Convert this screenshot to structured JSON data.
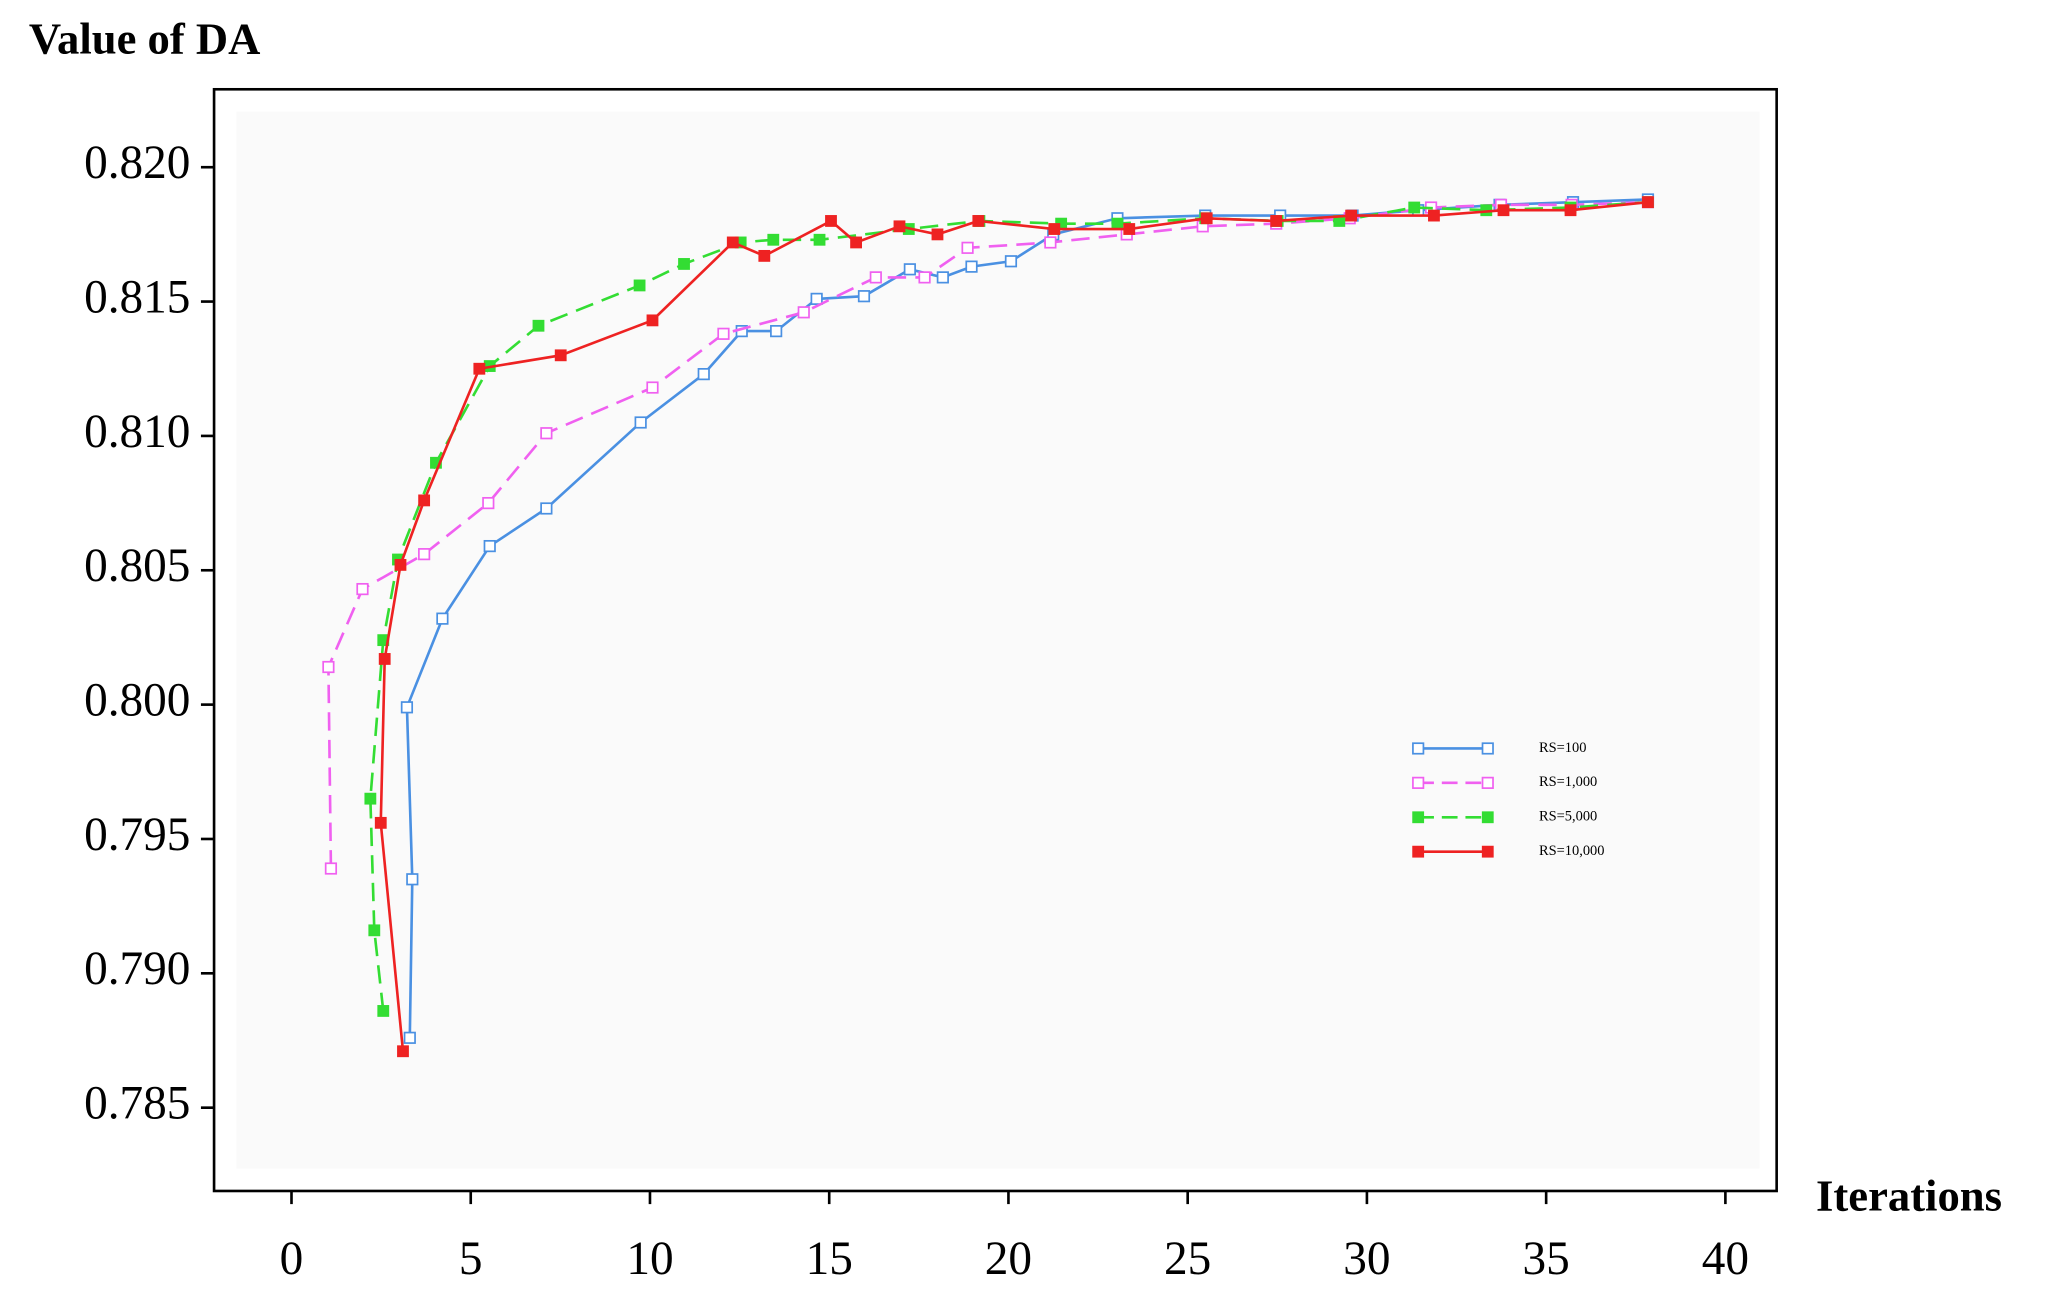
{
  "chart_data": {
    "type": "line",
    "ylabel": "Value of DA",
    "xlabel": "Iterations",
    "xlim": [
      -2.16,
      41.43
    ],
    "ylim": [
      0.7819,
      0.8229
    ],
    "xticks": [
      0,
      5,
      10,
      15,
      20,
      25,
      30,
      35,
      40
    ],
    "yticks": [
      0.785,
      {
        "value": 0.79,
        "label": "0.790"
      },
      0.795,
      {
        "value": 0.8,
        "label": "0.800"
      },
      0.805,
      {
        "value": 0.81,
        "label": "0.810"
      },
      0.815,
      {
        "value": 0.82,
        "label": "0.820"
      }
    ],
    "legend": "center right",
    "series": [
      {
        "name": "RS=100",
        "color": "#4a90e2",
        "dashed": false,
        "marker": "open",
        "x": [
          3.3,
          3.37,
          3.22,
          4.21,
          5.53,
          7.11,
          9.74,
          11.5,
          12.56,
          13.52,
          14.65,
          15.97,
          17.25,
          18.17,
          18.97,
          20.07,
          21.25,
          23.04,
          25.49,
          27.58,
          29.6,
          31.43,
          33.7,
          35.75,
          37.84
        ],
        "values": [
          0.7876,
          0.7935,
          0.7999,
          0.8032,
          0.8059,
          0.8073,
          0.8105,
          0.8123,
          0.8139,
          0.8139,
          0.8151,
          0.8152,
          0.8162,
          0.8159,
          0.8163,
          0.8165,
          0.8175,
          0.8181,
          0.8182,
          0.8182,
          0.8182,
          0.8184,
          0.8186,
          0.8187,
          0.8188
        ]
      },
      {
        "name": "RS=1,000",
        "color": "#f060f0",
        "dashed": true,
        "marker": "open",
        "x": [
          1.1,
          1.03,
          1.98,
          3.7,
          5.49,
          7.11,
          10.07,
          12.05,
          14.29,
          16.3,
          17.66,
          18.86,
          21.17,
          23.3,
          25.42,
          27.47,
          29.52,
          31.79,
          33.74,
          35.71,
          37.84
        ],
        "values": [
          0.7939,
          0.8014,
          0.8043,
          0.8056,
          0.8075,
          0.8101,
          0.8118,
          0.8138,
          0.8146,
          0.8159,
          0.8159,
          0.817,
          0.8172,
          0.8175,
          0.8178,
          0.8179,
          0.8181,
          0.8185,
          0.8186,
          0.8186,
          0.8187
        ]
      },
      {
        "name": "RS=5,000",
        "color": "#33dd33",
        "dashed": true,
        "marker": "filled",
        "x": [
          2.56,
          2.31,
          2.2,
          2.56,
          2.97,
          4.03,
          5.53,
          6.89,
          9.71,
          10.95,
          12.53,
          13.44,
          14.73,
          17.22,
          19.19,
          21.47,
          23.04,
          25.49,
          27.51,
          29.23,
          31.32,
          33.33,
          35.68,
          37.84
        ],
        "values": [
          0.7886,
          0.7916,
          0.7965,
          0.8024,
          0.8054,
          0.809,
          0.8126,
          0.8141,
          0.8156,
          0.8164,
          0.8172,
          0.8173,
          0.8173,
          0.8177,
          0.818,
          0.8179,
          0.8179,
          0.8181,
          0.818,
          0.818,
          0.8185,
          0.8184,
          0.8185,
          0.8187
        ]
      },
      {
        "name": "RS=10,000",
        "color": "#ee2222",
        "dashed": false,
        "marker": "filled",
        "x": [
          3.11,
          2.49,
          2.6,
          3.04,
          3.7,
          5.24,
          7.51,
          10.07,
          12.31,
          13.19,
          15.05,
          15.75,
          16.96,
          18.02,
          19.16,
          21.28,
          23.37,
          25.53,
          27.47,
          29.56,
          31.87,
          33.81,
          35.68,
          37.84
        ],
        "values": [
          0.7871,
          0.7956,
          0.8017,
          0.8052,
          0.8076,
          0.8125,
          0.813,
          0.8143,
          0.8172,
          0.8167,
          0.818,
          0.8172,
          0.8178,
          0.8175,
          0.818,
          0.8177,
          0.8177,
          0.8181,
          0.818,
          0.8182,
          0.8182,
          0.8184,
          0.8184,
          0.8187
        ]
      }
    ]
  }
}
